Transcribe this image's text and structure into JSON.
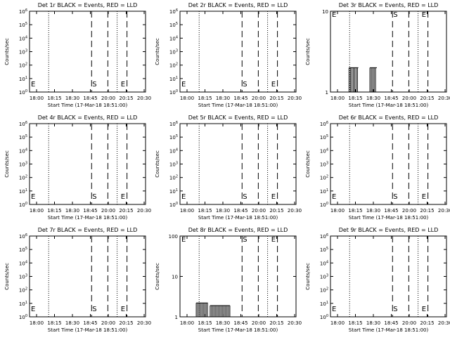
{
  "start_time_label": "Start Time (17-Mar-18 18:51:00)",
  "ylabel": "Counts/sec",
  "x_ticks": [
    "18:00",
    "18:15",
    "18:30",
    "18:45",
    "20:00",
    "20:15",
    "20:30"
  ],
  "colors": {
    "background": "#ffffff",
    "axes": "#000000",
    "events": "#000000",
    "lld": "#ff0000"
  },
  "markers": {
    "start_letter": "E",
    "s_letter": "S",
    "e_letter": "E"
  },
  "chart_data": [
    {
      "type": "line",
      "title": "Det 1r BLACK = Events, RED = LLD",
      "y_scale": "log",
      "ylim": [
        1,
        1000000
      ],
      "y_tick_labels": [
        "10^6",
        "10^5",
        "10^4",
        "10^3",
        "10^2",
        "10^1",
        "10^0"
      ],
      "series": []
    },
    {
      "type": "line",
      "title": "Det 2r BLACK = Events, RED = LLD",
      "y_scale": "log",
      "ylim": [
        1,
        1000000
      ],
      "y_tick_labels": [
        "10^6",
        "10^5",
        "10^4",
        "10^3",
        "10^2",
        "10^1",
        "10^0"
      ],
      "series": []
    },
    {
      "type": "line",
      "title": "Det 3r BLACK = Events, RED = LLD",
      "y_scale": "log",
      "ylim": [
        1,
        10
      ],
      "y_tick_labels": [
        "10",
        "1"
      ],
      "series": [
        {
          "name": "Events",
          "bursts": [
            [
              0.16,
              0.24,
              1,
              2
            ],
            [
              0.34,
              0.4,
              1,
              2
            ]
          ]
        }
      ]
    },
    {
      "type": "line",
      "title": "Det 4r BLACK = Events, RED = LLD",
      "y_scale": "log",
      "ylim": [
        1,
        1000000
      ],
      "y_tick_labels": [
        "10^6",
        "10^5",
        "10^4",
        "10^3",
        "10^2",
        "10^1",
        "10^0"
      ],
      "series": []
    },
    {
      "type": "line",
      "title": "Det 5r BLACK = Events, RED = LLD",
      "y_scale": "log",
      "ylim": [
        1,
        1000000
      ],
      "y_tick_labels": [
        "10^6",
        "10^5",
        "10^4",
        "10^3",
        "10^2",
        "10^1",
        "10^0"
      ],
      "series": []
    },
    {
      "type": "line",
      "title": "Det 6r BLACK = Events, RED = LLD",
      "y_scale": "log",
      "ylim": [
        1,
        1000000
      ],
      "y_tick_labels": [
        "10^6",
        "10^5",
        "10^4",
        "10^3",
        "10^2",
        "10^1",
        "10^0"
      ],
      "series": []
    },
    {
      "type": "line",
      "title": "Det 7r BLACK = Events, RED = LLD",
      "y_scale": "log",
      "ylim": [
        1,
        1000000
      ],
      "y_tick_labels": [
        "10^6",
        "10^5",
        "10^4",
        "10^3",
        "10^2",
        "10^1",
        "10^0"
      ],
      "series": []
    },
    {
      "type": "line",
      "title": "Det 8r BLACK = Events, RED = LLD",
      "y_scale": "log",
      "ylim": [
        1,
        100
      ],
      "y_tick_labels": [
        "100",
        "10",
        "1"
      ],
      "series": [
        {
          "name": "Events",
          "bursts": [
            [
              0.14,
              0.24,
              1,
              2.2
            ],
            [
              0.26,
              0.43,
              1,
              1.9
            ]
          ]
        }
      ]
    },
    {
      "type": "line",
      "title": "Det 9r BLACK = Events, RED = LLD",
      "y_scale": "log",
      "ylim": [
        1,
        1000000
      ],
      "y_tick_labels": [
        "10^6",
        "10^5",
        "10^4",
        "10^3",
        "10^2",
        "10^1",
        "10^0"
      ],
      "series": []
    }
  ]
}
